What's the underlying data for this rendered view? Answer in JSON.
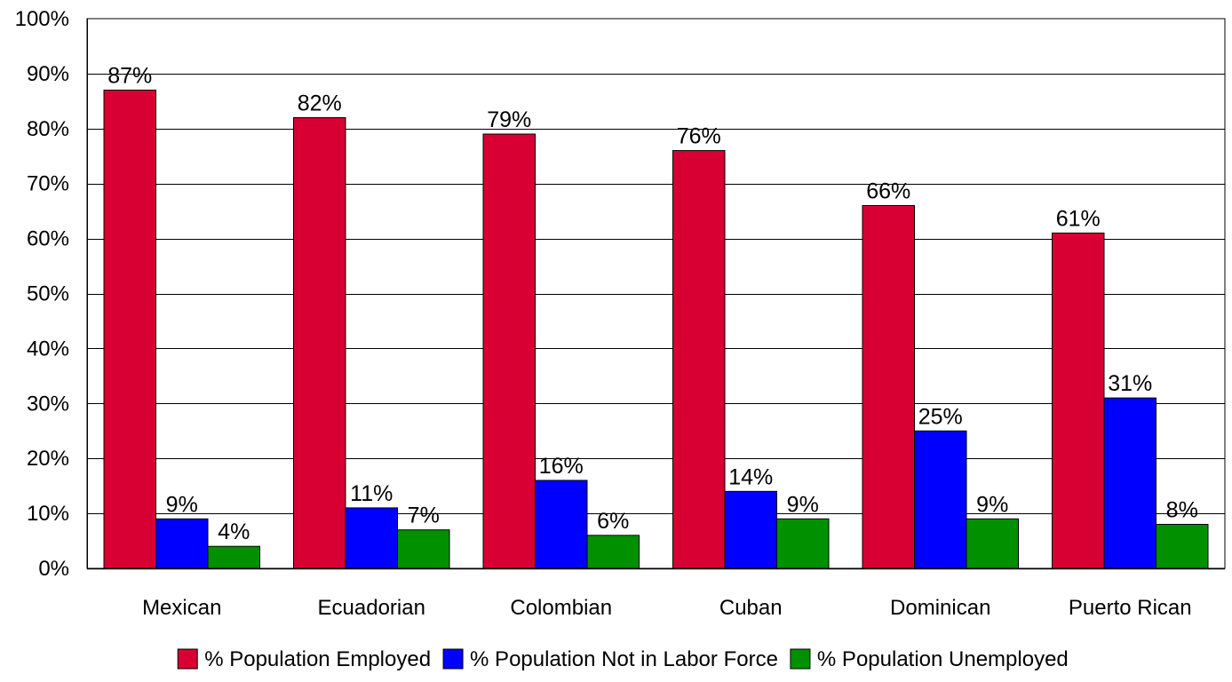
{
  "chart_data": {
    "type": "bar",
    "categories": [
      "Mexican",
      "Ecuadorian",
      "Colombian",
      "Cuban",
      "Dominican",
      "Puerto Rican"
    ],
    "series": [
      {
        "name": "% Population Employed",
        "values": [
          87,
          82,
          79,
          76,
          66,
          61
        ],
        "color": "#d80032"
      },
      {
        "name": "% Population Not in Labor Force",
        "values": [
          9,
          11,
          16,
          14,
          25,
          31
        ],
        "color": "#0000ff"
      },
      {
        "name": "% Population Unemployed",
        "values": [
          4,
          7,
          6,
          9,
          9,
          8
        ],
        "color": "#009000"
      }
    ],
    "value_format": "percent",
    "ylim": [
      0,
      100
    ],
    "yticks": [
      "0%",
      "10%",
      "20%",
      "30%",
      "40%",
      "50%",
      "60%",
      "70%",
      "80%",
      "90%",
      "100%"
    ],
    "grid": true,
    "legend": "bottom",
    "title": "",
    "xlabel": "",
    "ylabel": ""
  }
}
